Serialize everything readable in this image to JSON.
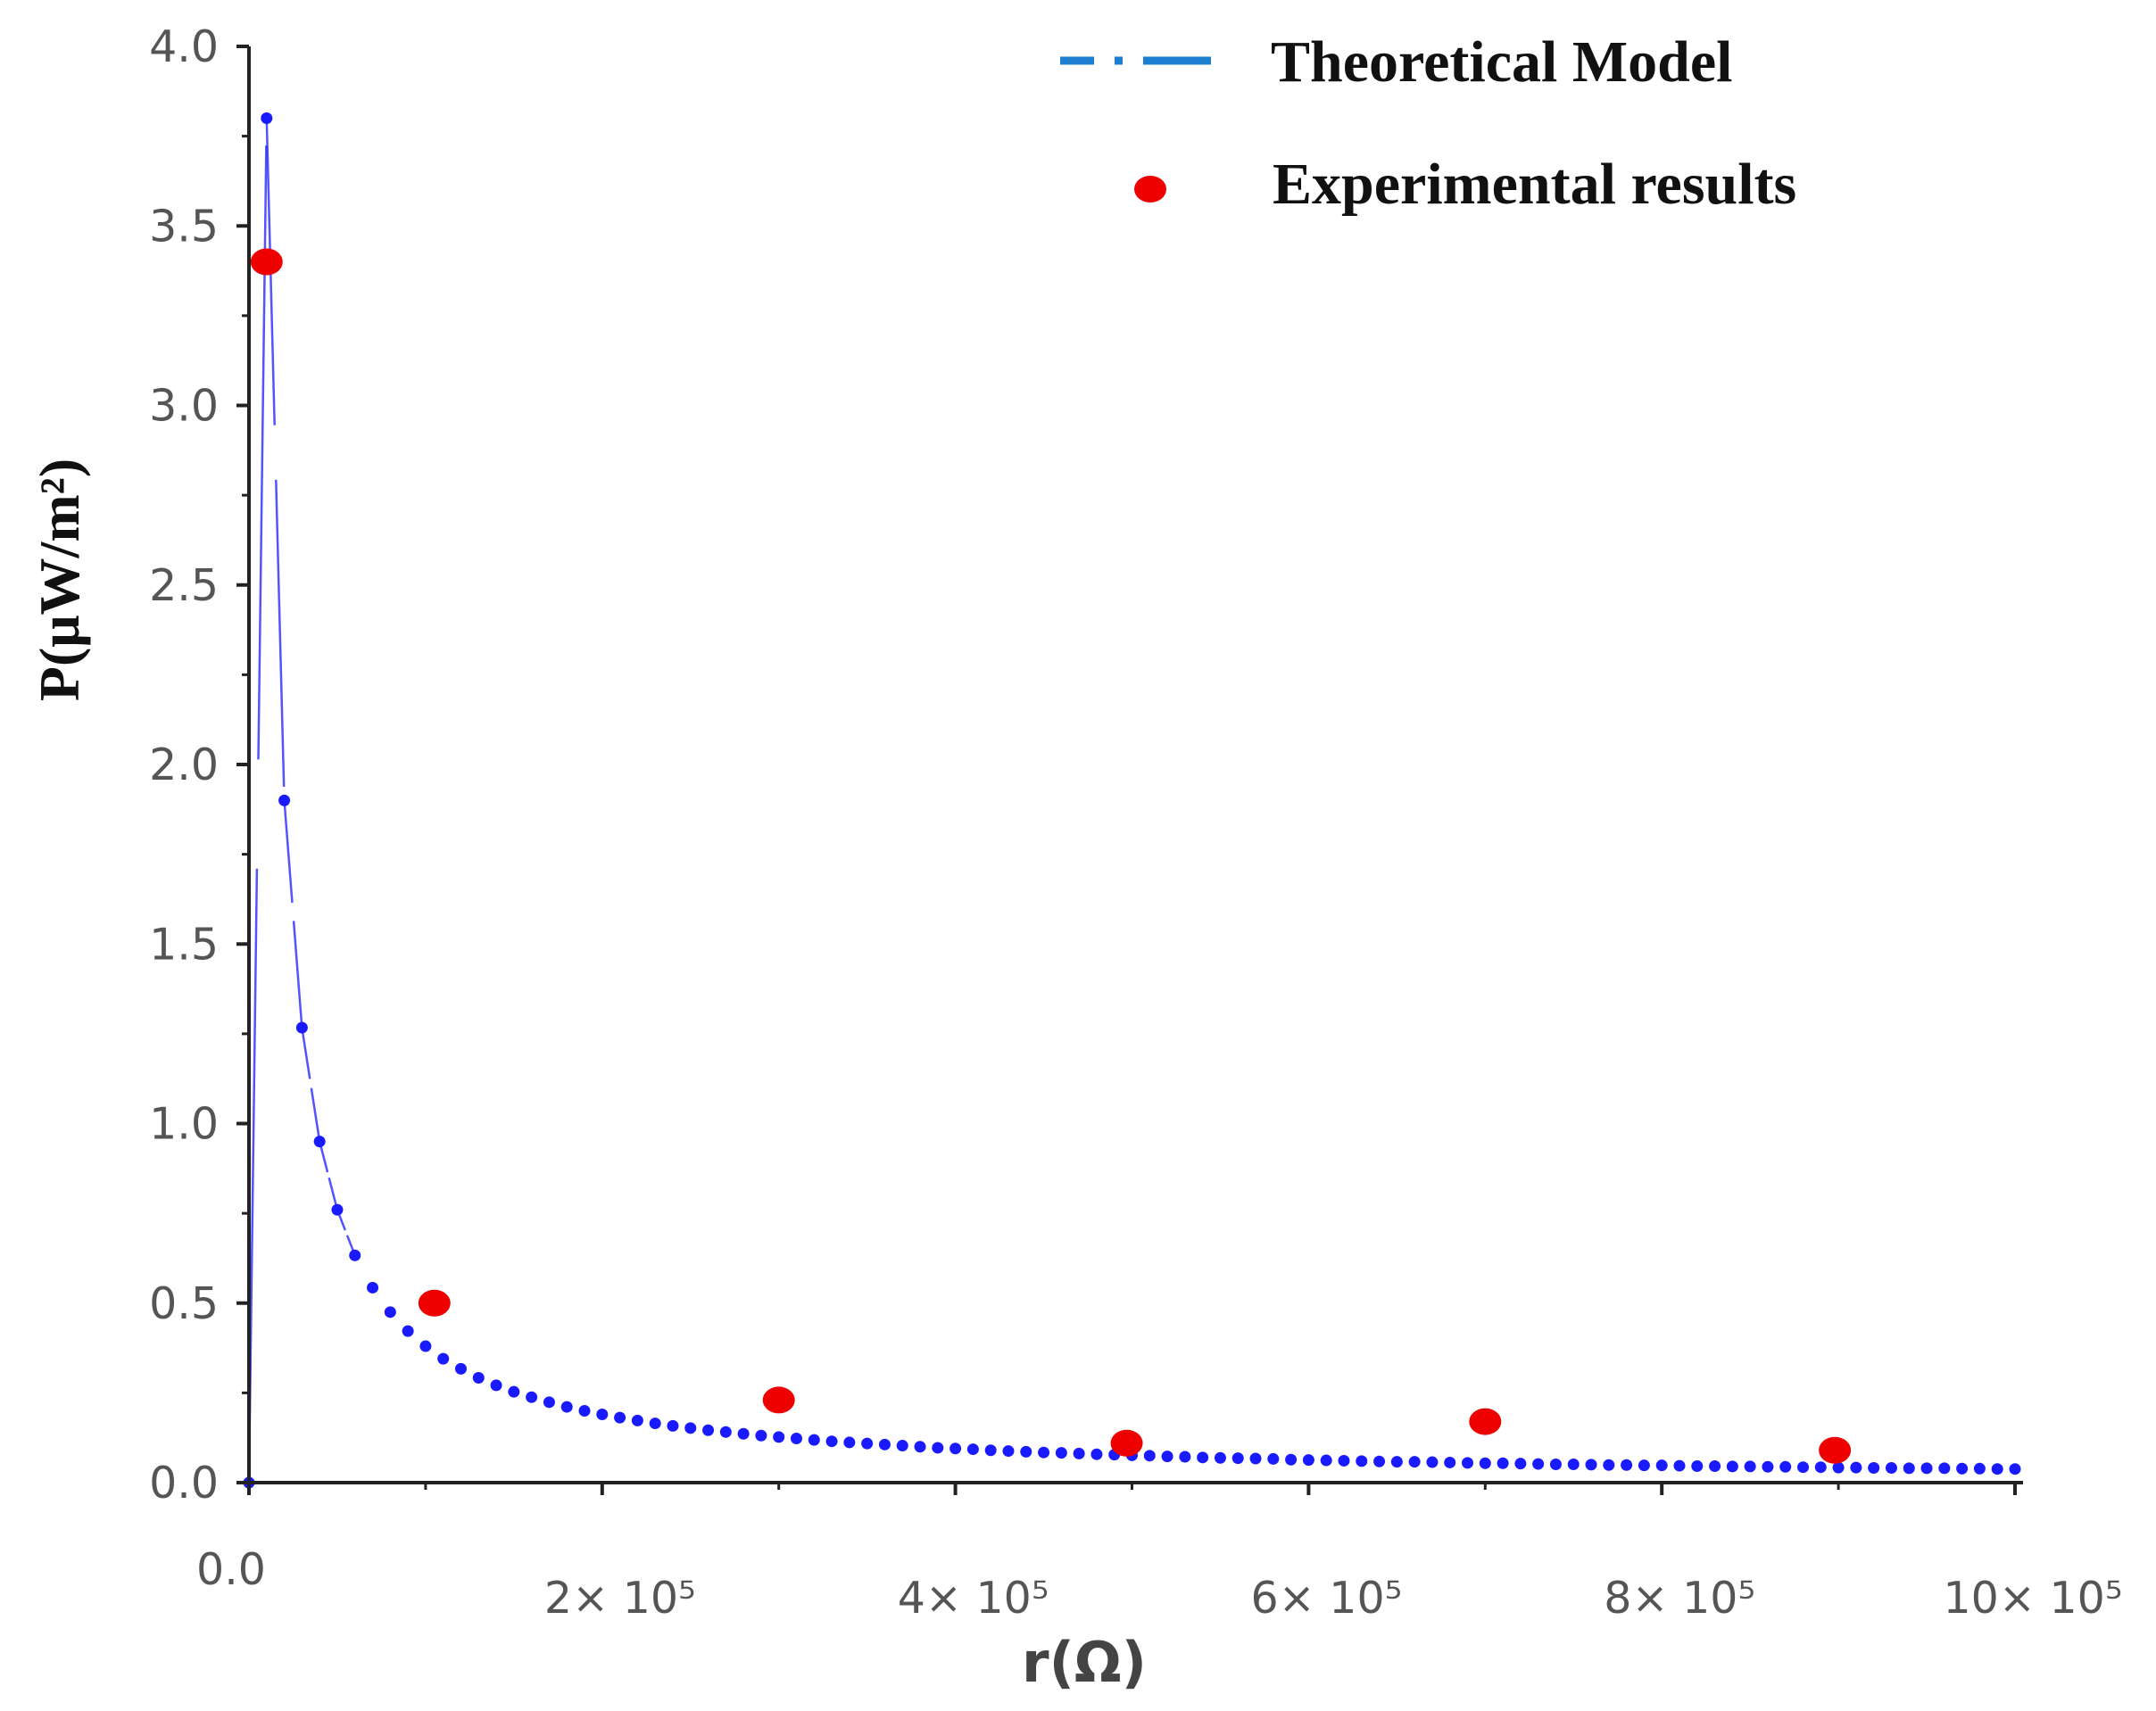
{
  "chart_data": {
    "type": "scatter",
    "title": "",
    "xlabel": "r(Ω)",
    "ylabel": "P(μW/m²)",
    "xlim": [
      0,
      1000000
    ],
    "ylim": [
      0,
      4.0
    ],
    "grid": false,
    "legend_position": "top-right",
    "x_ticks": [
      {
        "value": 0,
        "label": "0.0"
      },
      {
        "value": 200000,
        "label": "2× 10⁵"
      },
      {
        "value": 400000,
        "label": "4× 10⁵"
      },
      {
        "value": 600000,
        "label": "6× 10⁵"
      },
      {
        "value": 800000,
        "label": "8× 10⁵"
      },
      {
        "value": 1000000,
        "label": "10× 10⁵"
      }
    ],
    "y_ticks": [
      {
        "value": 0.0,
        "label": "0.0"
      },
      {
        "value": 0.5,
        "label": "0.5"
      },
      {
        "value": 1.0,
        "label": "1.0"
      },
      {
        "value": 1.5,
        "label": "1.5"
      },
      {
        "value": 2.0,
        "label": "2.0"
      },
      {
        "value": 2.5,
        "label": "2.5"
      },
      {
        "value": 3.0,
        "label": "3.0"
      },
      {
        "value": 3.5,
        "label": "3.5"
      },
      {
        "value": 4.0,
        "label": "4.0"
      }
    ],
    "series": [
      {
        "name": "Theoretical Model",
        "color": "#1a1aff",
        "legend_color": "#1e7fd0",
        "style": "dash-dot",
        "x": [
          0,
          10000,
          20000,
          30000,
          40000,
          50000,
          60000,
          70000,
          80000,
          90000,
          100000,
          110000,
          120000,
          130000,
          140000,
          150000,
          160000,
          170000,
          180000,
          190000,
          200000,
          210000,
          220000,
          230000,
          240000,
          250000,
          260000,
          270000,
          280000,
          290000,
          300000,
          310000,
          320000,
          330000,
          340000,
          350000,
          360000,
          370000,
          380000,
          390000,
          400000,
          410000,
          420000,
          430000,
          440000,
          450000,
          460000,
          470000,
          480000,
          490000,
          500000,
          510000,
          520000,
          530000,
          540000,
          550000,
          560000,
          570000,
          580000,
          590000,
          600000,
          610000,
          620000,
          630000,
          640000,
          650000,
          660000,
          670000,
          680000,
          690000,
          700000,
          710000,
          720000,
          730000,
          740000,
          750000,
          760000,
          770000,
          780000,
          790000,
          800000,
          810000,
          820000,
          830000,
          840000,
          850000,
          860000,
          870000,
          880000,
          890000,
          900000,
          910000,
          920000,
          930000,
          940000,
          950000,
          960000,
          970000,
          980000,
          990000,
          1000000
        ],
        "y": [
          0.0,
          3.8,
          1.9,
          1.267,
          0.95,
          0.76,
          0.633,
          0.543,
          0.475,
          0.422,
          0.38,
          0.345,
          0.317,
          0.292,
          0.271,
          0.253,
          0.238,
          0.224,
          0.211,
          0.2,
          0.19,
          0.181,
          0.173,
          0.165,
          0.158,
          0.152,
          0.146,
          0.141,
          0.136,
          0.131,
          0.127,
          0.123,
          0.119,
          0.115,
          0.112,
          0.109,
          0.106,
          0.103,
          0.1,
          0.097,
          0.095,
          0.093,
          0.09,
          0.088,
          0.086,
          0.084,
          0.083,
          0.081,
          0.079,
          0.078,
          0.076,
          0.075,
          0.073,
          0.072,
          0.07,
          0.069,
          0.068,
          0.067,
          0.066,
          0.064,
          0.063,
          0.062,
          0.061,
          0.06,
          0.059,
          0.058,
          0.058,
          0.057,
          0.056,
          0.055,
          0.054,
          0.054,
          0.053,
          0.052,
          0.051,
          0.051,
          0.05,
          0.049,
          0.049,
          0.048,
          0.048,
          0.047,
          0.046,
          0.046,
          0.045,
          0.045,
          0.044,
          0.044,
          0.043,
          0.043,
          0.042,
          0.042,
          0.041,
          0.041,
          0.04,
          0.04,
          0.04,
          0.039,
          0.039,
          0.038,
          0.038
        ]
      },
      {
        "name": "Experimental results",
        "color": "#ee0000",
        "style": "marker",
        "x": [
          10000,
          105000,
          300000,
          497000,
          700000,
          898000
        ],
        "y": [
          3.4,
          0.5,
          0.23,
          0.11,
          0.17,
          0.09
        ]
      }
    ]
  }
}
